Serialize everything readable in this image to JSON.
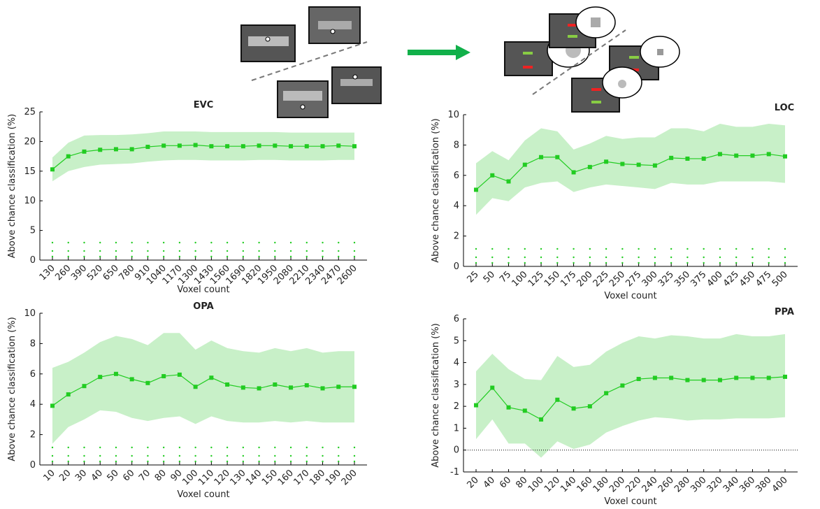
{
  "chart_data": [
    {
      "type": "line",
      "title": "EVC",
      "xlabel": "Voxel count",
      "ylabel": "Above chance classification (%)",
      "categories": [
        "130",
        "260",
        "390",
        "520",
        "650",
        "780",
        "910",
        "1040",
        "1170",
        "1300",
        "1430",
        "1560",
        "1690",
        "1820",
        "1950",
        "2080",
        "2210",
        "2340",
        "2470",
        "2600"
      ],
      "ylim": [
        0,
        25
      ],
      "yticks": [
        0,
        5,
        10,
        15,
        20,
        25
      ],
      "series": [
        {
          "color": "#22cc22",
          "band_color": "#c8f0c8",
          "values": [
            15.3,
            17.5,
            18.3,
            18.6,
            18.7,
            18.7,
            19.1,
            19.3,
            19.3,
            19.4,
            19.2,
            19.2,
            19.2,
            19.3,
            19.3,
            19.2,
            19.2,
            19.2,
            19.3,
            19.2
          ],
          "ci_upper": [
            17.3,
            19.8,
            21,
            21.1,
            21.1,
            21.2,
            21.4,
            21.7,
            21.7,
            21.7,
            21.6,
            21.6,
            21.6,
            21.6,
            21.6,
            21.5,
            21.5,
            21.5,
            21.5,
            21.5
          ],
          "ci_lower": [
            13.3,
            15,
            15.7,
            16.1,
            16.2,
            16.3,
            16.6,
            16.8,
            16.9,
            16.9,
            16.8,
            16.8,
            16.8,
            16.9,
            16.9,
            16.8,
            16.8,
            16.8,
            16.9,
            16.9
          ]
        }
      ]
    },
    {
      "type": "line",
      "title": "LOC",
      "xlabel": "Voxel count",
      "ylabel": "Above chance classification (%)",
      "categories": [
        "25",
        "50",
        "75",
        "100",
        "125",
        "150",
        "175",
        "200",
        "225",
        "250",
        "275",
        "300",
        "325",
        "350",
        "375",
        "400",
        "425",
        "450",
        "475",
        "500"
      ],
      "ylim": [
        0,
        10
      ],
      "yticks": [
        0,
        2,
        4,
        6,
        8,
        10
      ],
      "series": [
        {
          "color": "#22cc22",
          "band_color": "#c8f0c8",
          "values": [
            5.05,
            6.0,
            5.6,
            6.7,
            7.2,
            7.2,
            6.2,
            6.55,
            6.9,
            6.75,
            6.7,
            6.65,
            7.15,
            7.1,
            7.1,
            7.4,
            7.3,
            7.3,
            7.4,
            7.25
          ],
          "ci_upper": [
            6.8,
            7.6,
            7.0,
            8.3,
            9.1,
            8.9,
            7.7,
            8.1,
            8.6,
            8.4,
            8.5,
            8.5,
            9.1,
            9.1,
            8.9,
            9.4,
            9.2,
            9.2,
            9.4,
            9.3
          ],
          "ci_lower": [
            3.4,
            4.5,
            4.3,
            5.2,
            5.5,
            5.6,
            4.9,
            5.2,
            5.4,
            5.3,
            5.2,
            5.1,
            5.5,
            5.4,
            5.4,
            5.6,
            5.6,
            5.6,
            5.6,
            5.5
          ]
        }
      ]
    },
    {
      "type": "line",
      "title": "OPA",
      "xlabel": "Voxel count",
      "ylabel": "Above chance classification (%)",
      "categories": [
        "10",
        "20",
        "30",
        "40",
        "50",
        "60",
        "70",
        "80",
        "90",
        "100",
        "110",
        "120",
        "130",
        "140",
        "150",
        "160",
        "170",
        "180",
        "190",
        "200"
      ],
      "ylim": [
        0,
        10
      ],
      "yticks": [
        0,
        2,
        4,
        6,
        8,
        10
      ],
      "series": [
        {
          "color": "#22cc22",
          "band_color": "#c8f0c8",
          "values": [
            3.9,
            4.65,
            5.2,
            5.8,
            6.0,
            5.65,
            5.4,
            5.85,
            5.95,
            5.15,
            5.75,
            5.3,
            5.1,
            5.05,
            5.3,
            5.1,
            5.25,
            5.05,
            5.15,
            5.15
          ],
          "ci_upper": [
            6.4,
            6.8,
            7.4,
            8.1,
            8.5,
            8.3,
            7.9,
            8.7,
            8.7,
            7.6,
            8.2,
            7.7,
            7.5,
            7.4,
            7.7,
            7.5,
            7.7,
            7.4,
            7.5,
            7.5
          ],
          "ci_lower": [
            1.4,
            2.5,
            3.0,
            3.6,
            3.5,
            3.1,
            2.9,
            3.1,
            3.2,
            2.7,
            3.2,
            2.9,
            2.8,
            2.8,
            2.9,
            2.8,
            2.9,
            2.8,
            2.8,
            2.8
          ]
        }
      ]
    },
    {
      "type": "line",
      "title": "PPA",
      "xlabel": "Voxel count",
      "ylabel": "Above chance classification (%)",
      "categories": [
        "20",
        "40",
        "60",
        "80",
        "100",
        "120",
        "140",
        "160",
        "180",
        "200",
        "220",
        "240",
        "260",
        "280",
        "300",
        "320",
        "340",
        "360",
        "380",
        "400"
      ],
      "ylim": [
        -1,
        6
      ],
      "yticks": [
        -1,
        0,
        1,
        2,
        3,
        4,
        5,
        6
      ],
      "zero_line": true,
      "series": [
        {
          "color": "#22cc22",
          "band_color": "#c8f0c8",
          "values": [
            2.05,
            2.85,
            1.95,
            1.8,
            1.4,
            2.3,
            1.9,
            2.0,
            2.6,
            2.95,
            3.25,
            3.3,
            3.3,
            3.2,
            3.2,
            3.2,
            3.3,
            3.3,
            3.3,
            3.35
          ],
          "ci_upper": [
            3.6,
            4.4,
            3.7,
            3.25,
            3.2,
            4.3,
            3.8,
            3.9,
            4.5,
            4.9,
            5.2,
            5.1,
            5.25,
            5.2,
            5.1,
            5.1,
            5.3,
            5.2,
            5.2,
            5.3
          ],
          "ci_lower": [
            0.5,
            1.4,
            0.3,
            0.3,
            -0.35,
            0.4,
            0.05,
            0.25,
            0.8,
            1.1,
            1.35,
            1.5,
            1.45,
            1.35,
            1.4,
            1.4,
            1.45,
            1.45,
            1.45,
            1.5
          ]
        }
      ]
    }
  ]
}
